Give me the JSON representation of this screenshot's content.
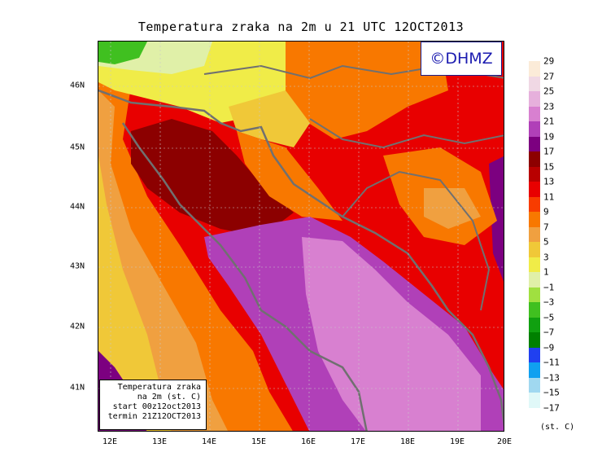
{
  "title": "Temperatura zraka na 2m u 21 UTC 12OCT2013",
  "logo_text": "©DHMZ",
  "info": {
    "line1": "Temperatura zraka",
    "line2": "na 2m (st. C)",
    "line3": "start 00z12oct2013",
    "line4": "termin 21Z12OCT2013"
  },
  "x_ticks": [
    "12E",
    "13E",
    "14E",
    "15E",
    "16E",
    "17E",
    "18E",
    "19E",
    "20E"
  ],
  "y_ticks": [
    "46N",
    "45N",
    "44N",
    "43N",
    "42N",
    "41N"
  ],
  "legend": {
    "labels": [
      "29",
      "27",
      "25",
      "23",
      "21",
      "19",
      "17",
      "15",
      "13",
      "11",
      "9",
      "7",
      "5",
      "3",
      "1",
      "−1",
      "−3",
      "−5",
      "−7",
      "−9",
      "−11",
      "−13",
      "−15",
      "−17"
    ],
    "colors": [
      "#fbebd8",
      "#f0d8e4",
      "#e6b0dc",
      "#d880d0",
      "#b040b8",
      "#7c0080",
      "#8c0000",
      "#b80000",
      "#e80000",
      "#f83c00",
      "#f87800",
      "#f0a040",
      "#f0c838",
      "#f0ec48",
      "#e0f0a8",
      "#a0e040",
      "#40c020",
      "#10a010",
      "#008000",
      "#2040f0",
      "#10a0f0",
      "#a0d8f0",
      "#e0f8f8"
    ],
    "unit": "(st. C)"
  },
  "map_extent": {
    "lon": [
      11.8,
      20.0
    ],
    "lat": [
      40.25,
      46.75
    ]
  }
}
